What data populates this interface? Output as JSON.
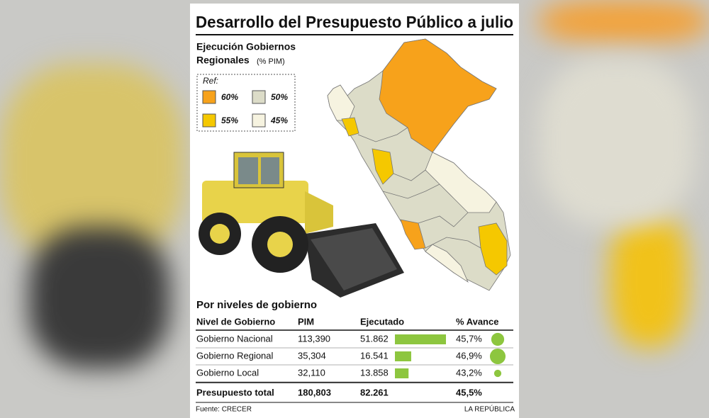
{
  "title": "Desarrollo del Presupuesto Público a julio",
  "map": {
    "title_lines": [
      "Ejecución Gobiernos",
      "Regionales"
    ],
    "unit": "(% PIM)",
    "legend": {
      "title": "Ref:",
      "items": [
        {
          "label": "60%",
          "color": "#f7a21b"
        },
        {
          "label": "50%",
          "color": "#dcdcc8"
        },
        {
          "label": "55%",
          "color": "#f5c800"
        },
        {
          "label": "45%",
          "color": "#f6f3e0"
        }
      ]
    }
  },
  "table": {
    "title": "Por niveles de gobierno",
    "header": [
      "Nivel de Gobierno",
      "PIM",
      "Ejecutado",
      "% Avance"
    ],
    "rows": [
      [
        "Gobierno Nacional",
        "113,390",
        "51.862",
        "45,7%"
      ],
      [
        "Gobierno Regional",
        "35,304",
        "16.541",
        "46,9%"
      ],
      [
        "Gobierno Local",
        "32,110",
        "13.858",
        "43,2%"
      ]
    ],
    "total": [
      "Presupuesto total",
      "180,803",
      "82.261",
      "45,5%"
    ],
    "bar_color": "#8dc63f"
  },
  "footer": {
    "source": "Fuente: CRECER",
    "brand": "LA REPÚBLICA"
  }
}
